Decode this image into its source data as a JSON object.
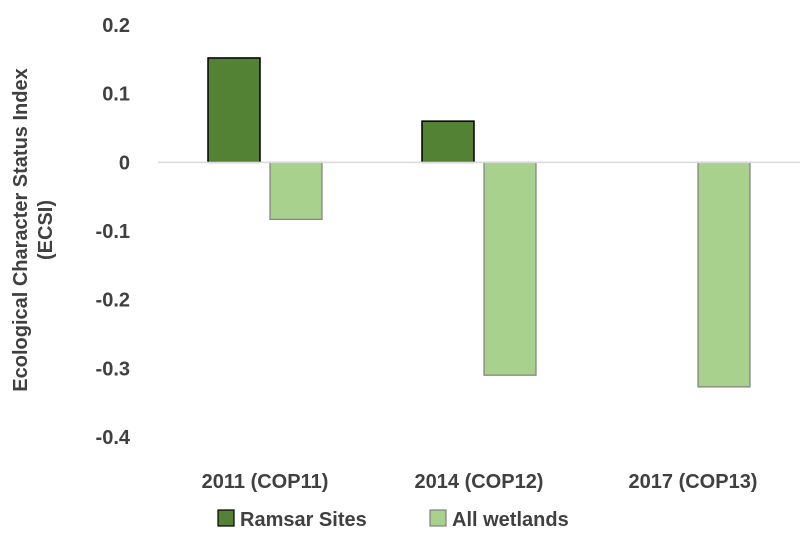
{
  "chart_data": {
    "type": "bar",
    "categories": [
      "2011 (COP11)",
      "2014 (COP12)",
      "2017 (COP13)"
    ],
    "series": [
      {
        "name": "Ramsar Sites",
        "values": [
          0.152,
          0.06,
          null
        ],
        "color": "#548235"
      },
      {
        "name": "All wetlands",
        "values": [
          -0.083,
          -0.31,
          -0.327
        ],
        "color": "#A9D18E"
      }
    ],
    "ylabel_line1": "Ecological Character Status Index",
    "ylabel_line2": "(ECSI)",
    "ylim": [
      -0.4,
      0.2
    ],
    "yticks": [
      0.2,
      0.1,
      0,
      -0.1,
      -0.2,
      -0.3,
      -0.4
    ],
    "ytick_labels": [
      "0.2",
      "0.1",
      "0",
      "-0.1",
      "-0.2",
      "-0.3",
      "-0.4"
    ],
    "grid": false,
    "legend_position": "bottom"
  }
}
